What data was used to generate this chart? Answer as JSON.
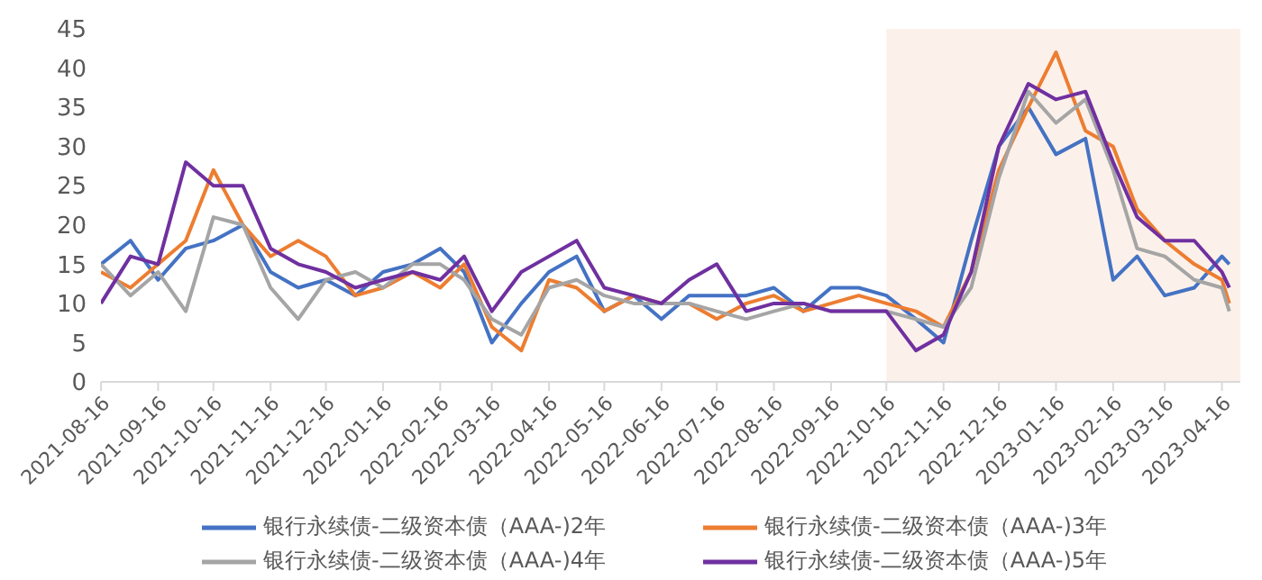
{
  "chart_data": {
    "type": "line",
    "x": [
      "2021-08-16",
      "2021-09-01",
      "2021-09-16",
      "2021-10-01",
      "2021-10-16",
      "2021-11-01",
      "2021-11-16",
      "2021-12-01",
      "2021-12-16",
      "2022-01-01",
      "2022-01-16",
      "2022-02-01",
      "2022-02-16",
      "2022-03-01",
      "2022-03-16",
      "2022-04-01",
      "2022-04-16",
      "2022-05-01",
      "2022-05-16",
      "2022-06-01",
      "2022-06-16",
      "2022-07-01",
      "2022-07-16",
      "2022-08-01",
      "2022-08-16",
      "2022-09-01",
      "2022-09-16",
      "2022-10-01",
      "2022-10-16",
      "2022-11-01",
      "2022-11-16",
      "2022-12-01",
      "2022-12-16",
      "2023-01-01",
      "2023-01-16",
      "2023-02-01",
      "2023-02-16",
      "2023-03-01",
      "2023-03-16",
      "2023-04-01",
      "2023-04-16",
      "2023-04-20"
    ],
    "series": [
      {
        "name": "银行永续债-二级资本债（AAA-)2年",
        "color": "#4472c4",
        "values": [
          15,
          18,
          13,
          17,
          18,
          20,
          14,
          12,
          13,
          11,
          14,
          15,
          17,
          14,
          5,
          10,
          14,
          16,
          9,
          11,
          8,
          11,
          11,
          11,
          12,
          9,
          12,
          12,
          11,
          8,
          5,
          18,
          30,
          35,
          29,
          31,
          13,
          16,
          11,
          12,
          16,
          15
        ]
      },
      {
        "name": "银行永续债-二级资本债（AAA-)3年",
        "color": "#ed7d31",
        "values": [
          14,
          12,
          15,
          18,
          27,
          20,
          16,
          18,
          16,
          11,
          12,
          14,
          12,
          15,
          7,
          4,
          13,
          12,
          9,
          11,
          10,
          10,
          8,
          10,
          11,
          9,
          10,
          11,
          10,
          9,
          7,
          14,
          27,
          35,
          42,
          32,
          30,
          22,
          18,
          15,
          13,
          10
        ]
      },
      {
        "name": "银行永续债-二级资本债（AAA-)4年",
        "color": "#a5a5a5",
        "values": [
          15,
          11,
          14,
          9,
          21,
          20,
          12,
          8,
          13,
          14,
          12,
          15,
          15,
          13,
          8,
          6,
          12,
          13,
          11,
          10,
          10,
          10,
          9,
          8,
          9,
          10,
          9,
          9,
          9,
          8,
          7,
          12,
          26,
          37,
          33,
          36,
          27,
          17,
          16,
          13,
          12,
          9
        ]
      },
      {
        "name": "银行永续债-二级资本债（AAA-)5年",
        "color": "#7030a0",
        "values": [
          10,
          16,
          15,
          28,
          25,
          25,
          17,
          15,
          14,
          12,
          13,
          14,
          13,
          16,
          9,
          14,
          16,
          18,
          12,
          11,
          10,
          13,
          15,
          9,
          10,
          10,
          9,
          9,
          9,
          4,
          6,
          14,
          30,
          38,
          36,
          37,
          28,
          21,
          18,
          18,
          14,
          12
        ]
      }
    ],
    "xlim": [
      "2021-08-16",
      "2023-04-26"
    ],
    "xticks": [
      "2021-08-16",
      "2021-09-16",
      "2021-10-16",
      "2021-11-16",
      "2021-12-16",
      "2022-01-16",
      "2022-02-16",
      "2022-03-16",
      "2022-04-16",
      "2022-05-16",
      "2022-06-16",
      "2022-07-16",
      "2022-08-16",
      "2022-09-16",
      "2022-10-16",
      "2022-11-16",
      "2022-12-16",
      "2023-01-16",
      "2023-02-16",
      "2023-03-16",
      "2023-04-16"
    ],
    "ylim": [
      0,
      45
    ],
    "yticks": [
      0,
      5,
      10,
      15,
      20,
      25,
      30,
      35,
      40,
      45
    ],
    "bands": [
      {
        "axis": "x",
        "from": "2022-10-16",
        "to": "2023-04-26",
        "color": "#fcf1ea"
      }
    ],
    "legend": "bottom"
  }
}
